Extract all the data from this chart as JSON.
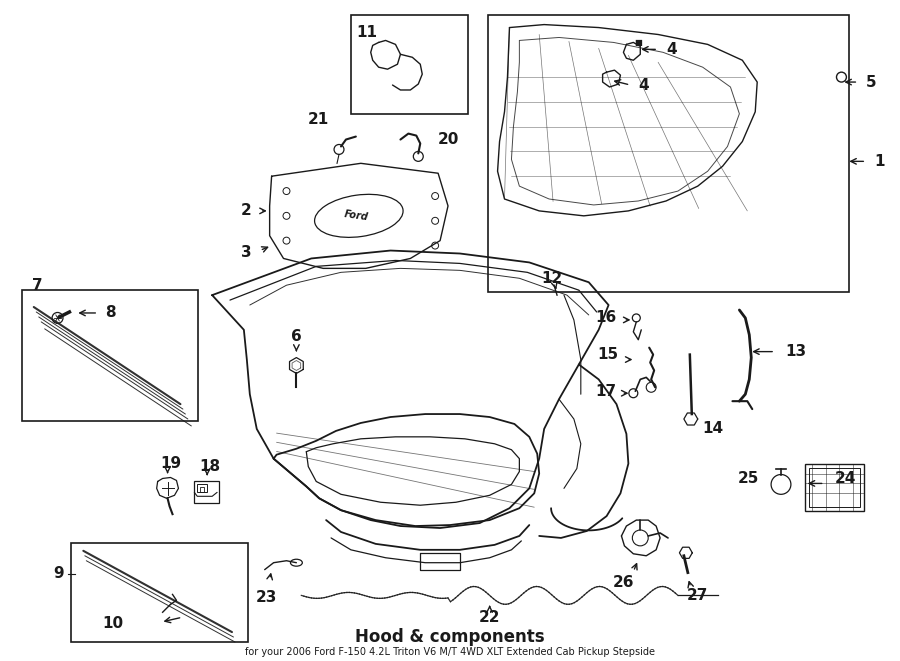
{
  "title": "Hood & components",
  "subtitle": "for your 2006 Ford F-150 4.2L Triton V6 M/T 4WD XLT Extended Cab Pickup Stepside",
  "bg_color": "#ffffff",
  "line_color": "#1a1a1a",
  "figsize": [
    9.0,
    6.61
  ],
  "dpi": 100
}
